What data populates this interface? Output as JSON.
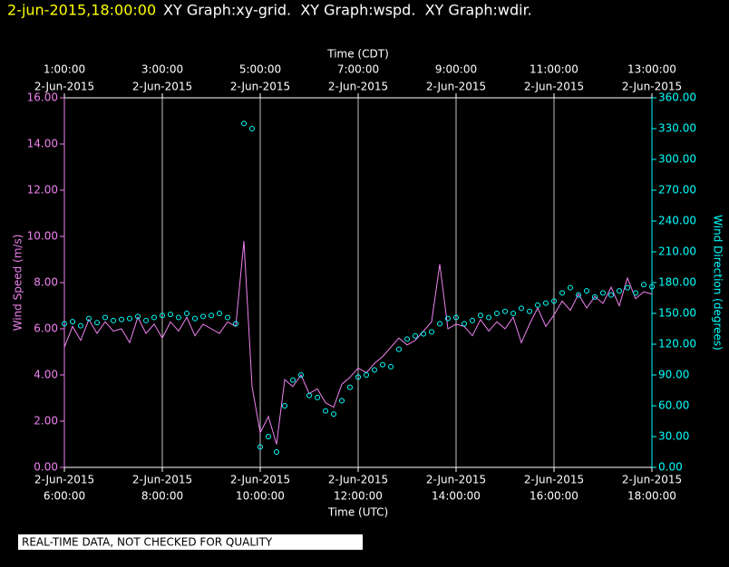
{
  "chart_data": {
    "type": "line_scatter",
    "title": "2-jun-2015,18:00:00",
    "subtitle": "XY Graph:xy-grid.  XY Graph:wspd.  XY Graph:wdir.",
    "x_label": "Time (UTC)",
    "x2_label": "Time (CDT)",
    "y_label": "Wind Speed (m/s)",
    "y2_label": "Wind Direction (degrees)",
    "note": "REAL-TIME DATA, NOT CHECKED FOR QUALITY",
    "grid": true,
    "xlim": [
      6,
      18
    ],
    "xticks": [
      {
        "value": 6,
        "label": "6:00:00",
        "date": "2-Jun-2015"
      },
      {
        "value": 8,
        "label": "8:00:00",
        "date": "2-Jun-2015"
      },
      {
        "value": 10,
        "label": "10:00:00",
        "date": "2-Jun-2015"
      },
      {
        "value": 12,
        "label": "12:00:00",
        "date": "2-Jun-2015"
      },
      {
        "value": 14,
        "label": "14:00:00",
        "date": "2-Jun-2015"
      },
      {
        "value": 16,
        "label": "16:00:00",
        "date": "2-Jun-2015"
      },
      {
        "value": 18,
        "label": "18:00:00",
        "date": "2-Jun-2015"
      }
    ],
    "x2lim": [
      1,
      13
    ],
    "x2ticks": [
      {
        "value": 1,
        "label": "1:00:00",
        "date": "2-Jun-2015"
      },
      {
        "value": 3,
        "label": "3:00:00",
        "date": "2-Jun-2015"
      },
      {
        "value": 5,
        "label": "5:00:00",
        "date": "2-Jun-2015"
      },
      {
        "value": 7,
        "label": "7:00:00",
        "date": "2-Jun-2015"
      },
      {
        "value": 9,
        "label": "9:00:00",
        "date": "2-Jun-2015"
      },
      {
        "value": 11,
        "label": "11:00:00",
        "date": "2-Jun-2015"
      },
      {
        "value": 13,
        "label": "13:00:00",
        "date": "2-Jun-2015"
      }
    ],
    "ylim": [
      0,
      16
    ],
    "yticks": [
      {
        "value": 0,
        "label": "0.00"
      },
      {
        "value": 2,
        "label": "2.00"
      },
      {
        "value": 4,
        "label": "4.00"
      },
      {
        "value": 6,
        "label": "6.00"
      },
      {
        "value": 8,
        "label": "8.00"
      },
      {
        "value": 10,
        "label": "10.00"
      },
      {
        "value": 12,
        "label": "12.00"
      },
      {
        "value": 14,
        "label": "14.00"
      },
      {
        "value": 16,
        "label": "16.00"
      }
    ],
    "y2lim": [
      0,
      360
    ],
    "y2ticks": [
      {
        "value": 0,
        "label": "0.00"
      },
      {
        "value": 30,
        "label": "30.00"
      },
      {
        "value": 60,
        "label": "60.00"
      },
      {
        "value": 90,
        "label": "90.00"
      },
      {
        "value": 120,
        "label": "120.00"
      },
      {
        "value": 150,
        "label": "150.00"
      },
      {
        "value": 180,
        "label": "180.00"
      },
      {
        "value": 210,
        "label": "210.00"
      },
      {
        "value": 240,
        "label": "240.00"
      },
      {
        "value": 270,
        "label": "270.00"
      },
      {
        "value": 300,
        "label": "300.00"
      },
      {
        "value": 330,
        "label": "330.00"
      },
      {
        "value": 360,
        "label": "360.00"
      }
    ],
    "x": [
      6,
      6.167,
      6.333,
      6.5,
      6.667,
      6.833,
      7,
      7.167,
      7.333,
      7.5,
      7.667,
      7.833,
      8,
      8.167,
      8.333,
      8.5,
      8.667,
      8.833,
      9,
      9.167,
      9.333,
      9.5,
      9.667,
      9.833,
      10,
      10.167,
      10.333,
      10.5,
      10.667,
      10.833,
      11,
      11.167,
      11.333,
      11.5,
      11.667,
      11.833,
      12,
      12.167,
      12.333,
      12.5,
      12.667,
      12.833,
      13,
      13.167,
      13.333,
      13.5,
      13.667,
      13.833,
      14,
      14.167,
      14.333,
      14.5,
      14.667,
      14.833,
      15,
      15.167,
      15.333,
      15.5,
      15.667,
      15.833,
      16,
      16.167,
      16.333,
      16.5,
      16.667,
      16.833,
      17,
      17.167,
      17.333,
      17.5,
      17.667,
      17.833,
      18
    ],
    "series": [
      {
        "name": "Wind Speed",
        "color": "#ee82ee",
        "values": [
          5.2,
          6.1,
          5.5,
          6.4,
          5.8,
          6.3,
          5.9,
          6.0,
          5.4,
          6.5,
          5.8,
          6.2,
          5.6,
          6.3,
          5.9,
          6.5,
          5.7,
          6.2,
          6.0,
          5.8,
          6.3,
          6.1,
          9.8,
          3.5,
          1.5,
          2.2,
          1.0,
          3.8,
          3.5,
          4.0,
          3.2,
          3.4,
          2.8,
          2.6,
          3.6,
          3.9,
          4.3,
          4.1,
          4.5,
          4.8,
          5.2,
          5.6,
          5.3,
          5.5,
          5.9,
          6.3,
          8.8,
          6.0,
          6.2,
          6.1,
          5.7,
          6.4,
          5.9,
          6.3,
          6.0,
          6.5,
          5.4,
          6.2,
          6.9,
          6.1,
          6.6,
          7.2,
          6.8,
          7.5,
          6.9,
          7.4,
          7.1,
          7.8,
          7.0,
          8.2,
          7.3,
          7.6,
          7.5
        ]
      },
      {
        "name": "Wind Direction",
        "color": "#00ffff",
        "axis": "y2",
        "values": [
          140,
          142,
          138,
          145,
          141,
          146,
          143,
          144,
          145,
          147,
          143,
          146,
          148,
          149,
          146,
          150,
          145,
          147,
          148,
          150,
          146,
          140,
          335,
          330,
          20,
          30,
          15,
          60,
          85,
          90,
          70,
          68,
          55,
          52,
          65,
          78,
          88,
          90,
          95,
          100,
          98,
          115,
          125,
          128,
          130,
          132,
          140,
          145,
          146,
          140,
          143,
          148,
          146,
          150,
          152,
          150,
          155,
          152,
          158,
          160,
          162,
          170,
          175,
          168,
          172,
          166,
          170,
          168,
          172,
          175,
          170,
          178,
          176
        ]
      }
    ]
  }
}
